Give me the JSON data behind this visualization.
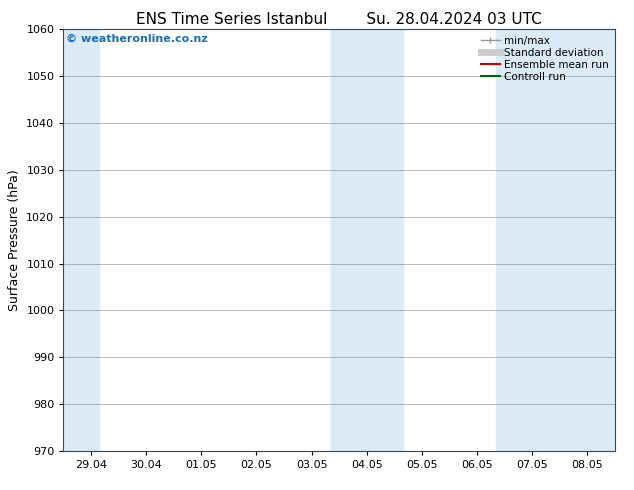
{
  "title_left": "ENS Time Series Istanbul",
  "title_right": "Su. 28.04.2024 03 UTC",
  "ylabel": "Surface Pressure (hPa)",
  "ylim": [
    970,
    1060
  ],
  "yticks": [
    970,
    980,
    990,
    1000,
    1010,
    1020,
    1030,
    1040,
    1050,
    1060
  ],
  "x_labels": [
    "29.04",
    "30.04",
    "01.05",
    "02.05",
    "03.05",
    "04.05",
    "05.05",
    "06.05",
    "07.05",
    "08.05"
  ],
  "x_positions": [
    0,
    1,
    2,
    3,
    4,
    5,
    6,
    7,
    8,
    9
  ],
  "xlim": [
    -0.5,
    9.5
  ],
  "shade_bands": [
    {
      "x_start": -0.5,
      "x_end": 0.15,
      "color": "#daeaf7"
    },
    {
      "x_start": 4.35,
      "x_end": 5.65,
      "color": "#daeaf7"
    },
    {
      "x_start": 7.35,
      "x_end": 9.5,
      "color": "#daeaf7"
    }
  ],
  "background_color": "#ffffff",
  "plot_bg_color": "#ffffff",
  "grid_color": "#888888",
  "watermark_text": "© weatheronline.co.nz",
  "watermark_color": "#1a6fb5",
  "legend_items": [
    {
      "label": "min/max",
      "color": "#999999",
      "lw": 1.0
    },
    {
      "label": "Standard deviation",
      "color": "#cccccc",
      "lw": 5
    },
    {
      "label": "Ensemble mean run",
      "color": "#cc0000",
      "lw": 1.5
    },
    {
      "label": "Controll run",
      "color": "#006600",
      "lw": 1.5
    }
  ],
  "title_fontsize": 11,
  "ylabel_fontsize": 9,
  "tick_fontsize": 8,
  "legend_fontsize": 7.5,
  "watermark_fontsize": 8
}
